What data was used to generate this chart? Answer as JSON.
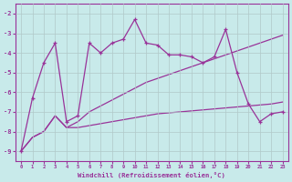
{
  "xlabel": "Windchill (Refroidissement éolien,°C)",
  "background_color": "#c8eaea",
  "grid_color": "#b0c8c8",
  "line_color": "#993399",
  "x_values": [
    0,
    1,
    2,
    3,
    4,
    5,
    6,
    7,
    8,
    9,
    10,
    11,
    12,
    13,
    14,
    15,
    16,
    17,
    18,
    19,
    20,
    21,
    22,
    23
  ],
  "line_main_y": [
    -9.0,
    -6.3,
    -4.5,
    -3.5,
    -7.5,
    -7.2,
    -3.5,
    -4.0,
    -3.5,
    -3.3,
    -2.3,
    -3.5,
    -3.6,
    -4.1,
    -4.1,
    -4.2,
    -4.5,
    -4.2,
    -2.8,
    -5.0,
    -6.6,
    -7.5,
    -7.1,
    -7.0
  ],
  "line_upper_y": [
    -9.0,
    -8.3,
    -8.0,
    -7.2,
    -7.8,
    -7.5,
    -7.0,
    -6.7,
    -6.4,
    -6.1,
    -5.8,
    -5.5,
    -5.3,
    -5.1,
    -4.9,
    -4.7,
    -4.5,
    -4.3,
    -4.1,
    -3.9,
    -3.7,
    -3.5,
    -3.3,
    -3.1
  ],
  "line_lower_y": [
    -9.0,
    -8.3,
    -8.0,
    -7.2,
    -7.8,
    -7.8,
    -7.7,
    -7.6,
    -7.5,
    -7.4,
    -7.3,
    -7.2,
    -7.1,
    -7.05,
    -7.0,
    -6.95,
    -6.9,
    -6.85,
    -6.8,
    -6.75,
    -6.7,
    -6.65,
    -6.6,
    -6.5
  ],
  "ylim": [
    -9.5,
    -1.5
  ],
  "xlim": [
    -0.5,
    23.5
  ],
  "yticks": [
    -9,
    -8,
    -7,
    -6,
    -5,
    -4,
    -3,
    -2
  ],
  "xticks": [
    0,
    1,
    2,
    3,
    4,
    5,
    6,
    7,
    8,
    9,
    10,
    11,
    12,
    13,
    14,
    15,
    16,
    17,
    18,
    19,
    20,
    21,
    22,
    23
  ]
}
